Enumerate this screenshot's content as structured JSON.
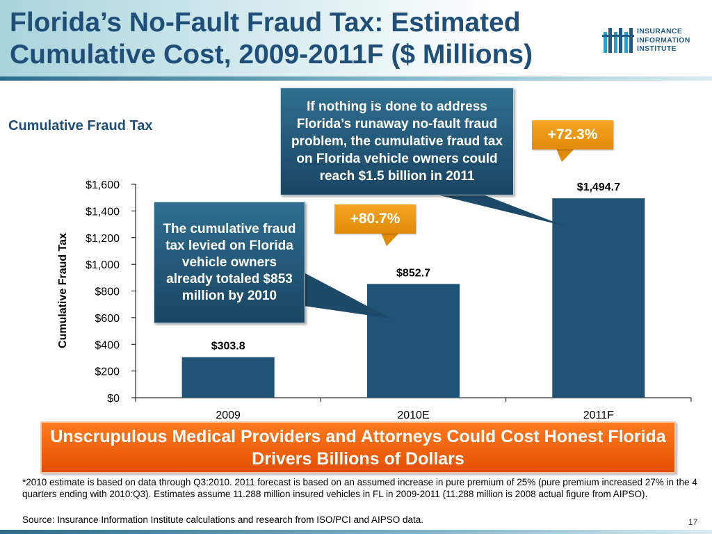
{
  "slide": {
    "title": "Florida’s No-Fault Fraud Tax: Estimated Cumulative Cost, 2009-2011F ($ Millions)",
    "subtitle": "Cumulative Fraud Tax",
    "page_number": "17"
  },
  "logo": {
    "line1": "INSURANCE",
    "line2": "INFORMATION",
    "line3": "INSTITUTE"
  },
  "callouts": {
    "top": "If nothing is done to address Florida’s runaway no-fault fraud problem, the cumulative fraud tax on Florida vehicle owners could reach $1.5 billion in 2011",
    "left": "The cumulative fraud tax levied on Florida vehicle owners already totaled $853 million by 2010"
  },
  "badges": {
    "growth_2010": "+80.7%",
    "growth_2011": "+72.3%"
  },
  "banner": {
    "text": "Unscrupulous Medical Providers and Attorneys Could Cost Honest Florida Drivers Billions of Dollars"
  },
  "footnote": "*2010 estimate is based on data through Q3:2010.  2011 forecast is based on an assumed increase in pure premium of 25% (pure premium increased 27% in the 4 quarters ending with 2010:Q3).  Estimates assume 11.288 million insured vehicles in FL in 2009-2011 (11.288 million is 2008 actual figure from AIPSO).",
  "source": "Source: Insurance Information Institute calculations and research from ISO/PCI and AIPSO data.",
  "colors": {
    "bar": "#1f5275",
    "title": "#1f4e79",
    "accent_orange": "#f39c12",
    "banner_orange": "#ff6a00"
  },
  "chart_data": {
    "type": "bar",
    "categories": [
      "2009",
      "2010E",
      "2011F"
    ],
    "values": [
      303.8,
      852.7,
      1494.7
    ],
    "data_labels": [
      "$303.8",
      "$852.7",
      "$1,494.7"
    ],
    "ylabel": "Cumulative Fraud Tax",
    "xlabel": "",
    "ylim": [
      0,
      1600
    ],
    "yticks": [
      0,
      200,
      400,
      600,
      800,
      1000,
      1200,
      1400,
      1600
    ],
    "ytick_labels": [
      "$0",
      "$200",
      "$400",
      "$600",
      "$800",
      "$1,000",
      "$1,200",
      "$1,400",
      "$1,600"
    ],
    "grid": false,
    "legend": "none"
  }
}
